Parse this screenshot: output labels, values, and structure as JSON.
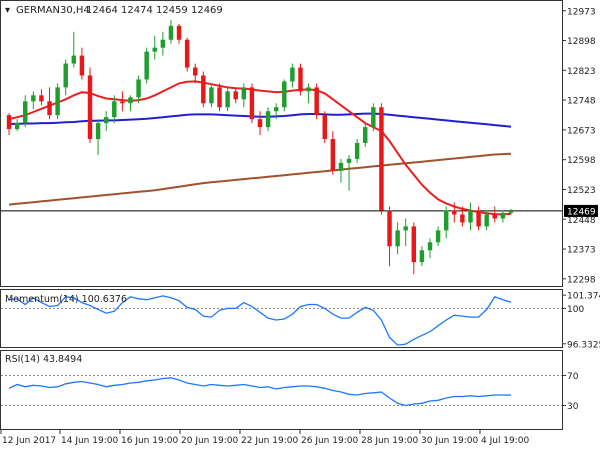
{
  "chart_data": [
    {
      "type": "candlestick",
      "title": "GERMAN30,H4",
      "ohlc_label": "12464 12474 12459 12469",
      "ylim": [
        12290,
        12990
      ],
      "y_ticks": [
        12973,
        12898,
        12823,
        12748,
        12673,
        12598,
        12523,
        12448,
        12373,
        12298
      ],
      "current_price": 12469,
      "candles": [
        [
          12710,
          12715,
          12660,
          12675
        ],
        [
          12675,
          12700,
          12670,
          12690
        ],
        [
          12690,
          12760,
          12680,
          12745
        ],
        [
          12745,
          12770,
          12725,
          12760
        ],
        [
          12760,
          12775,
          12735,
          12745
        ],
        [
          12745,
          12780,
          12700,
          12710
        ],
        [
          12710,
          12790,
          12700,
          12780
        ],
        [
          12780,
          12850,
          12760,
          12840
        ],
        [
          12840,
          12920,
          12830,
          12860
        ],
        [
          12860,
          12880,
          12800,
          12810
        ],
        [
          12810,
          12830,
          12640,
          12650
        ],
        [
          12650,
          12700,
          12610,
          12690
        ],
        [
          12690,
          12720,
          12670,
          12705
        ],
        [
          12705,
          12760,
          12690,
          12745
        ],
        [
          12745,
          12770,
          12720,
          12740
        ],
        [
          12740,
          12760,
          12720,
          12755
        ],
        [
          12755,
          12810,
          12740,
          12800
        ],
        [
          12800,
          12880,
          12790,
          12870
        ],
        [
          12870,
          12910,
          12850,
          12880
        ],
        [
          12880,
          12920,
          12860,
          12900
        ],
        [
          12900,
          12950,
          12890,
          12935
        ],
        [
          12935,
          12940,
          12890,
          12900
        ],
        [
          12900,
          12905,
          12820,
          12830
        ],
        [
          12830,
          12840,
          12790,
          12810
        ],
        [
          12810,
          12820,
          12730,
          12740
        ],
        [
          12740,
          12790,
          12730,
          12780
        ],
        [
          12780,
          12790,
          12720,
          12730
        ],
        [
          12730,
          12780,
          12720,
          12770
        ],
        [
          12770,
          12780,
          12740,
          12750
        ],
        [
          12750,
          12790,
          12730,
          12780
        ],
        [
          12780,
          12790,
          12690,
          12700
        ],
        [
          12700,
          12720,
          12660,
          12680
        ],
        [
          12680,
          12730,
          12670,
          12720
        ],
        [
          12720,
          12740,
          12700,
          12730
        ],
        [
          12730,
          12800,
          12720,
          12795
        ],
        [
          12795,
          12840,
          12780,
          12830
        ],
        [
          12830,
          12840,
          12760,
          12770
        ],
        [
          12770,
          12790,
          12740,
          12780
        ],
        [
          12780,
          12790,
          12700,
          12710
        ],
        [
          12710,
          12720,
          12640,
          12650
        ],
        [
          12650,
          12670,
          12560,
          12570
        ],
        [
          12570,
          12600,
          12540,
          12590
        ],
        [
          12590,
          12610,
          12520,
          12600
        ],
        [
          12600,
          12650,
          12590,
          12640
        ],
        [
          12640,
          12690,
          12630,
          12680
        ],
        [
          12680,
          12740,
          12670,
          12730
        ],
        [
          12730,
          12740,
          12460,
          12470
        ],
        [
          12470,
          12480,
          12330,
          12380
        ],
        [
          12380,
          12440,
          12360,
          12420
        ],
        [
          12420,
          12450,
          12380,
          12430
        ],
        [
          12430,
          12440,
          12310,
          12340
        ],
        [
          12340,
          12380,
          12330,
          12370
        ],
        [
          12370,
          12400,
          12350,
          12390
        ],
        [
          12390,
          12430,
          12380,
          12420
        ],
        [
          12420,
          12480,
          12400,
          12470
        ],
        [
          12470,
          12490,
          12440,
          12460
        ],
        [
          12460,
          12480,
          12430,
          12440
        ],
        [
          12440,
          12490,
          12420,
          12470
        ],
        [
          12470,
          12480,
          12420,
          12430
        ],
        [
          12430,
          12470,
          12420,
          12460
        ],
        [
          12460,
          12480,
          12440,
          12450
        ],
        [
          12450,
          12470,
          12440,
          12464
        ],
        [
          12464,
          12474,
          12459,
          12469
        ]
      ],
      "series": [
        {
          "color": "#e82020",
          "values": [
            12700,
            12705,
            12710,
            12718,
            12726,
            12734,
            12742,
            12750,
            12760,
            12768,
            12766,
            12758,
            12752,
            12750,
            12748,
            12746,
            12748,
            12752,
            12760,
            12770,
            12780,
            12790,
            12794,
            12795,
            12792,
            12788,
            12784,
            12780,
            12778,
            12777,
            12775,
            12772,
            12770,
            12768,
            12769,
            12772,
            12774,
            12775,
            12773,
            12765,
            12750,
            12735,
            12720,
            12705,
            12690,
            12680,
            12670,
            12645,
            12615,
            12585,
            12560,
            12535,
            12515,
            12498,
            12488,
            12480,
            12474,
            12470,
            12466,
            12463,
            12461,
            12460,
            12462
          ]
        },
        {
          "color": "#2020d0",
          "values": [
            12688,
            12688,
            12689,
            12689,
            12690,
            12690,
            12691,
            12692,
            12693,
            12695,
            12696,
            12696,
            12697,
            12697,
            12698,
            12699,
            12700,
            12701,
            12703,
            12705,
            12707,
            12709,
            12711,
            12712,
            12712,
            12712,
            12711,
            12710,
            12709,
            12708,
            12707,
            12706,
            12706,
            12707,
            12708,
            12710,
            12712,
            12713,
            12713,
            12712,
            12711,
            12711,
            12712,
            12713,
            12714,
            12714,
            12713,
            12711,
            12709,
            12707,
            12705,
            12703,
            12701,
            12699,
            12697,
            12695,
            12693,
            12691,
            12689,
            12687,
            12685,
            12683,
            12681
          ]
        },
        {
          "color": "#a0522d",
          "values": [
            12485,
            12487,
            12489,
            12491,
            12493,
            12495,
            12497,
            12499,
            12501,
            12503,
            12505,
            12507,
            12509,
            12511,
            12513,
            12515,
            12517,
            12519,
            12521,
            12524,
            12527,
            12530,
            12533,
            12536,
            12539,
            12541,
            12543,
            12545,
            12547,
            12549,
            12551,
            12553,
            12555,
            12557,
            12559,
            12561,
            12563,
            12565,
            12567,
            12569,
            12571,
            12573,
            12575,
            12577,
            12579,
            12581,
            12583,
            12585,
            12587,
            12589,
            12591,
            12593,
            12595,
            12597,
            12599,
            12601,
            12603,
            12605,
            12607,
            12609,
            12611,
            12612,
            12613
          ]
        }
      ]
    },
    {
      "type": "line",
      "title": "Momentum(14) 100.6376",
      "ylim": [
        96.0,
        101.7
      ],
      "y_ticks": [
        101.374,
        100,
        96.3325
      ],
      "levels": [
        100
      ],
      "series": [
        {
          "color": "#1e78ff",
          "values": [
            100.9,
            101.0,
            100.4,
            101.1,
            100.6,
            100.2,
            100.3,
            101.2,
            101.1,
            100.6,
            100.3,
            99.9,
            99.5,
            99.7,
            100.6,
            101.2,
            101.0,
            100.9,
            101.1,
            101.3,
            101.1,
            100.8,
            100.1,
            99.9,
            99.2,
            99.1,
            99.8,
            100.0,
            100.0,
            100.6,
            100.2,
            99.6,
            99.0,
            98.8,
            98.9,
            99.4,
            100.2,
            100.4,
            100.4,
            100.0,
            99.4,
            99.0,
            99.0,
            99.6,
            100.1,
            99.8,
            98.8,
            97.0,
            96.2,
            96.3,
            96.8,
            97.2,
            97.6,
            98.2,
            98.8,
            99.3,
            99.2,
            99.1,
            99.1,
            99.9,
            101.2,
            100.9,
            100.64
          ]
        }
      ]
    },
    {
      "type": "line",
      "title": "RSI(14) 43.8494",
      "ylim": [
        0,
        100
      ],
      "y_ticks": [
        70,
        30
      ],
      "levels": [
        70,
        30
      ],
      "series": [
        {
          "color": "#1e78ff",
          "values": [
            53,
            58,
            55,
            57,
            56,
            54,
            55,
            59,
            61,
            62,
            60,
            58,
            55,
            57,
            58,
            60,
            61,
            63,
            64,
            66,
            67,
            64,
            60,
            58,
            56,
            58,
            57,
            56,
            57,
            58,
            56,
            54,
            55,
            52,
            54,
            55,
            56,
            56,
            55,
            53,
            50,
            48,
            45,
            44,
            46,
            47,
            48,
            40,
            33,
            30,
            32,
            33,
            36,
            37,
            40,
            42,
            42,
            43,
            42,
            43,
            44,
            44,
            43.8
          ]
        }
      ]
    }
  ],
  "x_labels": [
    "12 Jun 2017",
    "14 Jun 19:00",
    "16 Jun 19:00",
    "20 Jun 19:00",
    "22 Jun 19:00",
    "26 Jun 19:00",
    "28 Jun 19:00",
    "30 Jun 19:00",
    "4 Jul 19:00"
  ],
  "colors": {
    "bull": "#1f9d2f",
    "bear": "#e81818",
    "grid": "#bbbbbb",
    "axis": "#333333"
  }
}
